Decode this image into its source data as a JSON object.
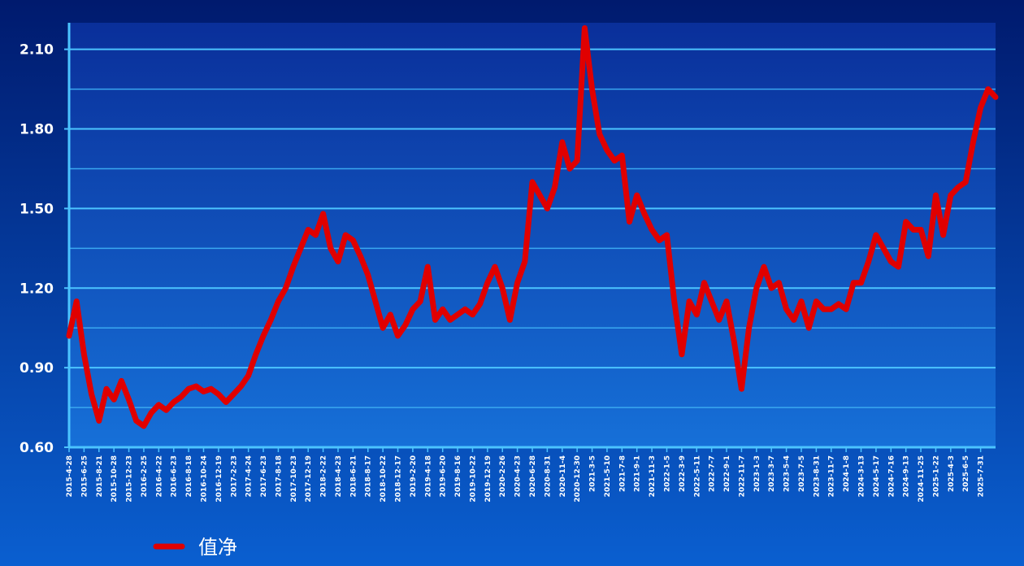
{
  "chart_data": {
    "type": "line",
    "categories": [
      "2015-4-28",
      null,
      "2015-6-25",
      null,
      "2015-8-21",
      null,
      "2015-10-28",
      null,
      "2015-12-23",
      null,
      "2016-2-25",
      null,
      "2016-4-22",
      null,
      "2016-6-23",
      null,
      "2016-8-18",
      null,
      "2016-10-24",
      null,
      "2016-12-19",
      null,
      "2017-2-23",
      null,
      "2017-4-24",
      null,
      "2017-6-23",
      null,
      "2017-8-18",
      null,
      "2017-10-23",
      null,
      "2017-12-19",
      null,
      "2018-2-22",
      null,
      "2018-4-23",
      null,
      "2018-6-21",
      null,
      "2018-8-17",
      null,
      "2018-10-22",
      null,
      "2018-12-17",
      null,
      "2019-2-20",
      null,
      "2019-4-18",
      null,
      "2019-6-20",
      null,
      "2019-8-16",
      null,
      "2019-10-22",
      null,
      "2019-12-19",
      null,
      "2020-2-26",
      null,
      "2020-4-23",
      null,
      "2020-6-28",
      null,
      "2020-8-31",
      null,
      "2020-11-4",
      null,
      "2020-12-30",
      null,
      "2021-3-5",
      null,
      "2021-5-10",
      null,
      "2021-7-8",
      null,
      "2021-9-1",
      null,
      "2021-11-3",
      null,
      "2022-1-5",
      null,
      "2022-3-9",
      null,
      "2022-5-11",
      null,
      "2022-7-7",
      null,
      "2022-9-1",
      null,
      "2022-11-7",
      null,
      "2023-1-3",
      null,
      "2023-3-7",
      null,
      "2023-5-4",
      null,
      "2023-7-5",
      null,
      "2023-8-31",
      null,
      "2023-11-7",
      null,
      "2024-1-8",
      null,
      "2024-3-13",
      null,
      "2024-5-17",
      null,
      "2024-7-16",
      null,
      "2024-9-13",
      null,
      "2024-11-25",
      null,
      "2025-1-22",
      null,
      "2025-4-3",
      null,
      "2025-6-5",
      null,
      "2025-7-31",
      null,
      null
    ],
    "series": [
      {
        "name": "值净",
        "color": "#e00000",
        "values": [
          1.02,
          1.15,
          0.95,
          0.8,
          0.7,
          0.82,
          0.78,
          0.85,
          0.78,
          0.7,
          0.68,
          0.73,
          0.76,
          0.74,
          0.77,
          0.79,
          0.82,
          0.83,
          0.81,
          0.82,
          0.8,
          0.77,
          0.8,
          0.83,
          0.87,
          0.95,
          1.02,
          1.08,
          1.15,
          1.2,
          1.28,
          1.35,
          1.42,
          1.4,
          1.48,
          1.35,
          1.3,
          1.4,
          1.38,
          1.32,
          1.25,
          1.15,
          1.05,
          1.1,
          1.02,
          1.06,
          1.12,
          1.15,
          1.28,
          1.08,
          1.12,
          1.08,
          1.1,
          1.12,
          1.1,
          1.14,
          1.22,
          1.28,
          1.2,
          1.08,
          1.22,
          1.3,
          1.6,
          1.55,
          1.5,
          1.58,
          1.75,
          1.65,
          1.68,
          2.18,
          1.95,
          1.78,
          1.72,
          1.68,
          1.7,
          1.45,
          1.55,
          1.48,
          1.42,
          1.38,
          1.4,
          1.15,
          0.95,
          1.15,
          1.1,
          1.22,
          1.15,
          1.08,
          1.15,
          1.0,
          0.82,
          1.05,
          1.2,
          1.28,
          1.2,
          1.22,
          1.12,
          1.08,
          1.15,
          1.05,
          1.15,
          1.12,
          1.12,
          1.14,
          1.12,
          1.22,
          1.22,
          1.3,
          1.4,
          1.35,
          1.3,
          1.28,
          1.45,
          1.42,
          1.42,
          1.32,
          1.55,
          1.4,
          1.55,
          1.58,
          1.6,
          1.75,
          1.88,
          1.95,
          1.92
        ]
      }
    ],
    "ylim": [
      0.6,
      2.2
    ],
    "yticks": [
      {
        "value": 0.6,
        "label": "0.60"
      },
      {
        "value": 0.9,
        "label": "0.90"
      },
      {
        "value": 1.2,
        "label": "1.20"
      },
      {
        "value": 1.5,
        "label": "1.50"
      },
      {
        "value": 1.8,
        "label": "1.80"
      },
      {
        "value": 2.1,
        "label": "2.10"
      }
    ],
    "minor_yticks": [
      0.75,
      1.05,
      1.35,
      1.65,
      1.95
    ],
    "grid": true
  }
}
